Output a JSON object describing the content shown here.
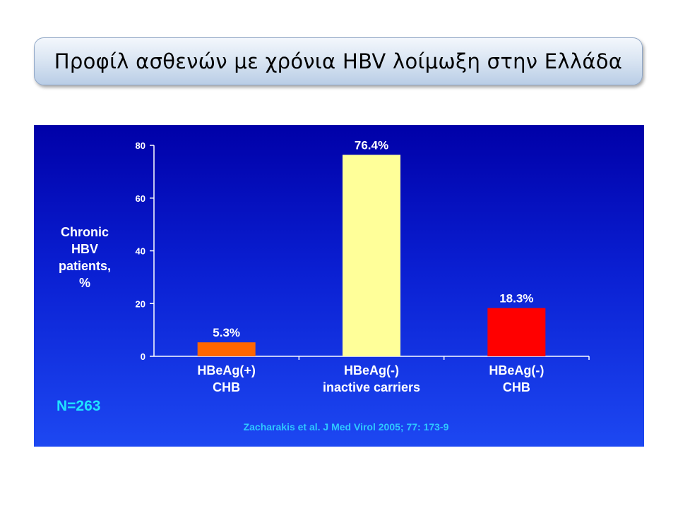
{
  "slide": {
    "title": "Προφίλ ασθενών με χρόνια HBV λοίμωξη στην Ελλάδα",
    "n_label": "N=263",
    "source": "Zacharakis et al. J Med Virol 2005; 77: 173-9"
  },
  "colors": {
    "panel_top": "#0000a8",
    "panel_bottom": "#1d48f2",
    "n_label": "#1fe3ff",
    "source": "#2ec8ff"
  },
  "chart_data": {
    "type": "bar",
    "title": "",
    "ylabel": "Chronic\nHBV\npatients,\n%",
    "xlabel": "",
    "ylim": [
      0,
      80
    ],
    "yticks": [
      0,
      20,
      40,
      60,
      80
    ],
    "grid": false,
    "categories": [
      [
        "HBeAg(+)",
        "CHB"
      ],
      [
        "HBeAg(-)",
        "inactive carriers"
      ],
      [
        "HBeAg(-)",
        "CHB"
      ]
    ],
    "values": [
      5.3,
      76.4,
      18.3
    ],
    "data_labels": [
      "5.3%",
      "76.4%",
      "18.3%"
    ],
    "bar_colors": [
      "#ff6600",
      "#ffff99",
      "#ff0000"
    ]
  }
}
